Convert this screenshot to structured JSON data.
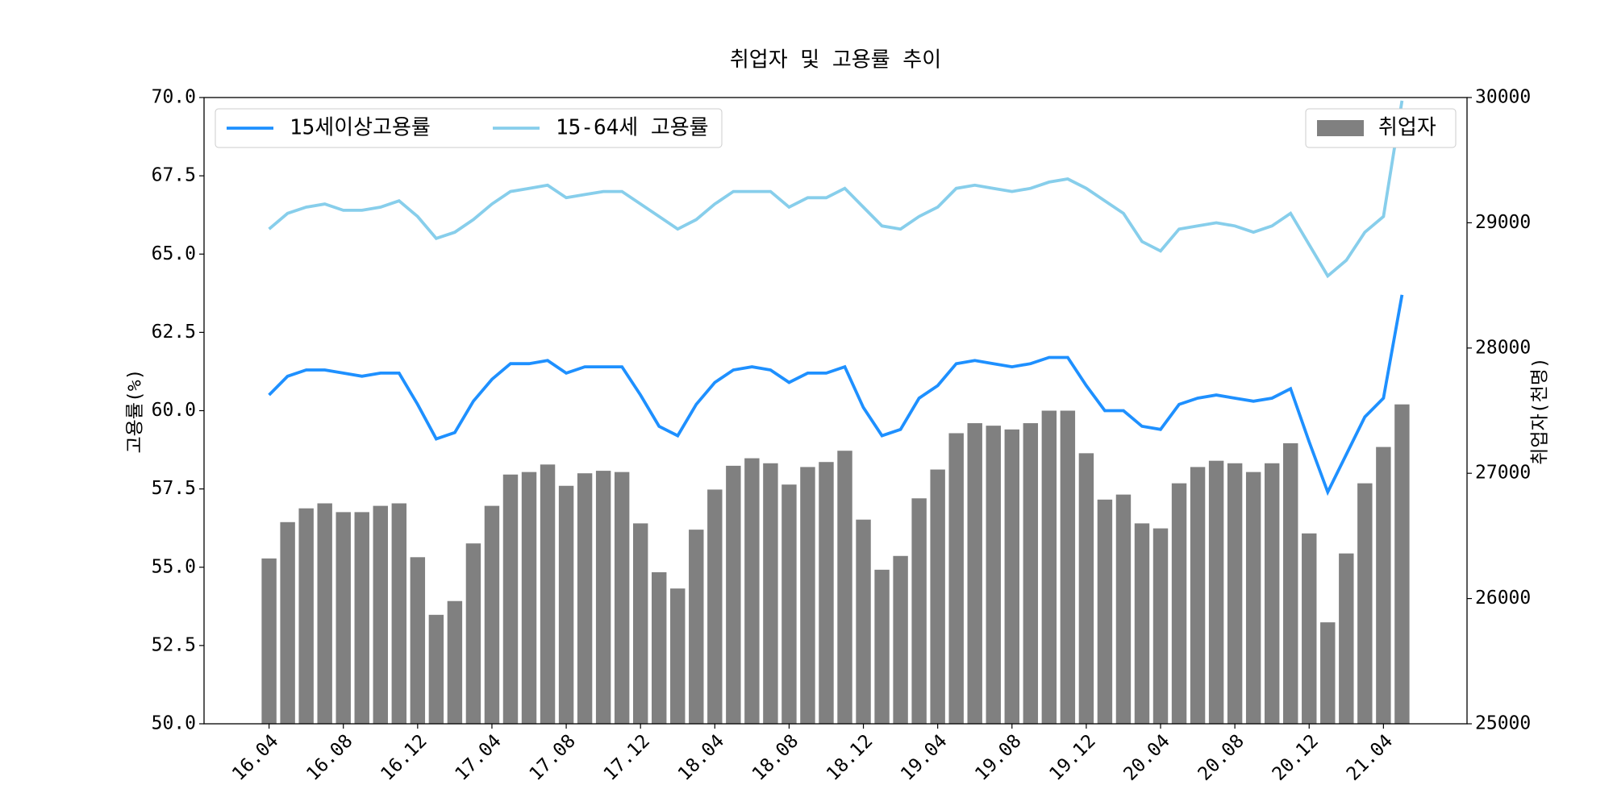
{
  "chart_data": {
    "type": "bar_line_dual",
    "title": "취업자 및 고용률 추이",
    "ylabel": "고용률(%)",
    "y2label": "취업자(천명)",
    "categories": [
      "16.04",
      null,
      null,
      null,
      "16.08",
      null,
      null,
      null,
      "16.12",
      null,
      null,
      null,
      "17.04",
      null,
      null,
      null,
      "17.08",
      null,
      null,
      null,
      "17.12",
      null,
      null,
      null,
      "18.04",
      null,
      null,
      null,
      "18.08",
      null,
      null,
      null,
      "18.12",
      null,
      null,
      null,
      "19.04",
      null,
      null,
      null,
      "19.08",
      null,
      null,
      null,
      "19.12",
      null,
      null,
      null,
      "20.04",
      null,
      null,
      null,
      "20.08",
      null,
      null,
      null,
      "20.12",
      null,
      null,
      null,
      "21.04",
      null
    ],
    "series": [
      {
        "name": "15세이상고용률",
        "color": "#1e90ff",
        "kind": "line",
        "axis": "y",
        "values": [
          60.5,
          61.1,
          61.3,
          61.3,
          61.2,
          61.1,
          61.2,
          61.2,
          60.2,
          59.1,
          59.3,
          60.3,
          61.0,
          61.5,
          61.5,
          61.6,
          61.2,
          61.4,
          61.4,
          61.4,
          60.5,
          59.5,
          59.2,
          60.2,
          60.9,
          61.3,
          61.4,
          61.3,
          60.9,
          61.2,
          61.2,
          61.4,
          60.1,
          59.2,
          59.4,
          60.4,
          60.8,
          61.5,
          61.6,
          61.5,
          61.4,
          61.5,
          61.7,
          61.7,
          60.8,
          60.0,
          60.0,
          59.5,
          59.4,
          60.2,
          60.4,
          60.5,
          60.4,
          60.3,
          60.4,
          60.7,
          59.0,
          57.4,
          58.6,
          59.8,
          60.4,
          63.7
        ]
      },
      {
        "name": "15-64세 고용률",
        "color": "#87ceeb",
        "kind": "line",
        "axis": "y",
        "values": [
          65.8,
          66.3,
          66.5,
          66.6,
          66.4,
          66.4,
          66.5,
          66.7,
          66.2,
          65.5,
          65.7,
          66.1,
          66.6,
          67.0,
          67.1,
          67.2,
          66.8,
          66.9,
          67.0,
          67.0,
          66.6,
          66.2,
          65.8,
          66.1,
          66.6,
          67.0,
          67.0,
          67.0,
          66.5,
          66.8,
          66.8,
          67.1,
          66.5,
          65.9,
          65.8,
          66.2,
          66.5,
          67.1,
          67.2,
          67.1,
          67.0,
          67.1,
          67.3,
          67.4,
          67.1,
          66.7,
          66.3,
          65.4,
          65.1,
          65.8,
          65.9,
          66.0,
          65.9,
          65.7,
          65.9,
          66.3,
          65.3,
          64.3,
          64.8,
          65.7,
          66.2,
          69.9
        ]
      },
      {
        "name": "취업자",
        "color": "#808080",
        "kind": "bar",
        "axis": "y2",
        "values": [
          26320,
          26610,
          26720,
          26760,
          26690,
          26690,
          26740,
          26760,
          26330,
          25870,
          25980,
          26440,
          26740,
          26990,
          27010,
          27070,
          26900,
          27000,
          27020,
          27010,
          26600,
          26210,
          26080,
          26550,
          26870,
          27060,
          27120,
          27080,
          26910,
          27050,
          27090,
          27180,
          26630,
          26230,
          26340,
          26800,
          27030,
          27320,
          27400,
          27380,
          27350,
          27400,
          27500,
          27500,
          27160,
          26790,
          26830,
          26600,
          26560,
          26920,
          27050,
          27100,
          27080,
          27010,
          27080,
          27240,
          26520,
          25810,
          26360,
          26920,
          27210,
          27550
        ]
      }
    ],
    "ylim": [
      50,
      70
    ],
    "yticks": [
      {
        "value": 50,
        "label": "50.0"
      },
      {
        "value": 52.5,
        "label": "52.5"
      },
      {
        "value": 55,
        "label": "55.0"
      },
      {
        "value": 57.5,
        "label": "57.5"
      },
      {
        "value": 60,
        "label": "60.0"
      },
      {
        "value": 62.5,
        "label": "62.5"
      },
      {
        "value": 65,
        "label": "65.0"
      },
      {
        "value": 67.5,
        "label": "67.5"
      },
      {
        "value": 70,
        "label": "70.0"
      }
    ],
    "y2lim": [
      25000,
      30000
    ],
    "y2ticks": [
      25000,
      26000,
      27000,
      28000,
      29000,
      30000
    ],
    "legend": "upper left",
    "legend2": "upper right"
  }
}
